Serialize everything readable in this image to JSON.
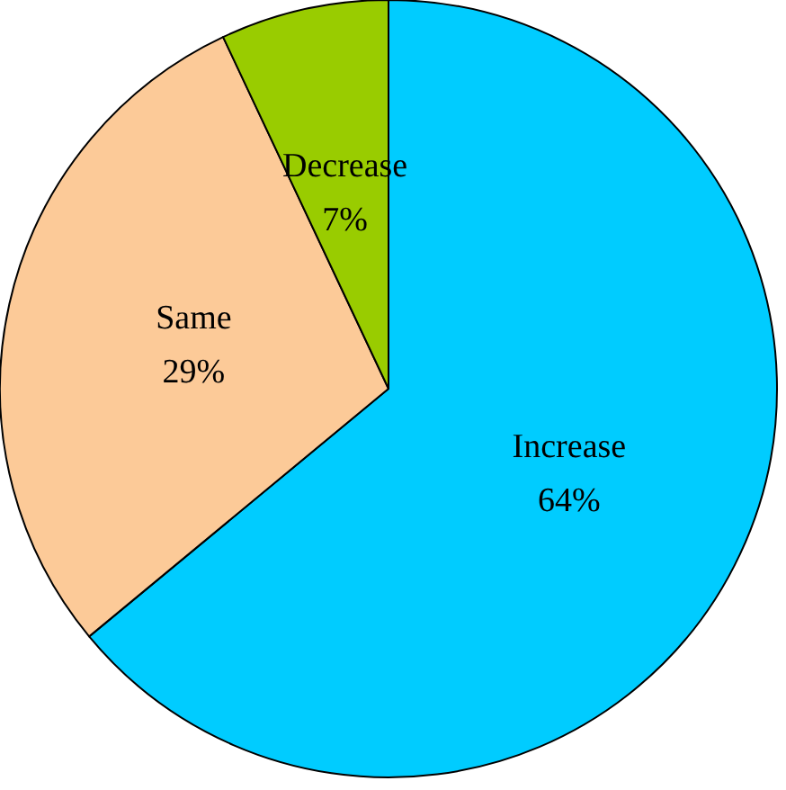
{
  "chart_data": {
    "type": "pie",
    "categories": [
      "Increase",
      "Same",
      "Decrease"
    ],
    "values": [
      64,
      29,
      7
    ],
    "colors": [
      "#00ccff",
      "#fcca98",
      "#99cc00"
    ],
    "value_labels": [
      "64%",
      "29%",
      "7%"
    ],
    "legend": false
  }
}
